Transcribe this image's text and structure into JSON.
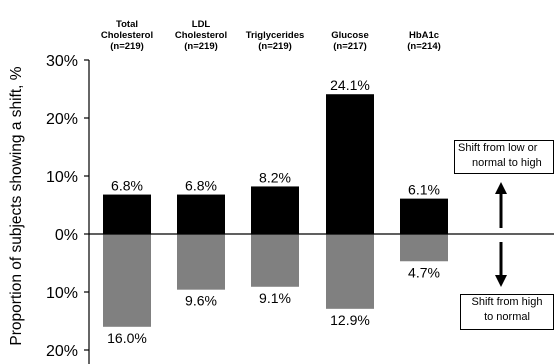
{
  "chart_data": {
    "type": "bar",
    "ylabel": "Proportion of subjects showing a shift, %",
    "categories": [
      {
        "name": "Total Cholesterol",
        "lines": [
          "Total",
          "Cholesterol",
          "(n=219)"
        ]
      },
      {
        "name": "LDL Cholesterol",
        "lines": [
          "LDL",
          "Cholesterol",
          "(n=219)"
        ]
      },
      {
        "name": "Triglycerides",
        "lines": [
          "Triglycerides",
          "(n=219)"
        ]
      },
      {
        "name": "Glucose",
        "lines": [
          "Glucose",
          "(n=217)"
        ]
      },
      {
        "name": "HbA1c",
        "lines": [
          "HbA1c",
          "(n=214)"
        ]
      }
    ],
    "series": [
      {
        "values": [
          6.8,
          6.8,
          8.2,
          24.1,
          6.1
        ],
        "labels": [
          "6.8%",
          "6.8%",
          "8.2%",
          "24.1%",
          "6.1%"
        ],
        "color": "#000000",
        "direction": "up"
      },
      {
        "values": [
          16.0,
          9.6,
          9.1,
          12.9,
          4.7
        ],
        "labels": [
          "16.0%",
          "9.6%",
          "9.1%",
          "12.9%",
          "4.7%"
        ],
        "color": "#808080",
        "direction": "down"
      }
    ],
    "yticks": [
      {
        "value": 30,
        "label": "30%"
      },
      {
        "value": 20,
        "label": "20%"
      },
      {
        "value": 10,
        "label": "10%"
      },
      {
        "value": 0,
        "label": "0%"
      },
      {
        "value": -10,
        "label": "10%"
      },
      {
        "value": -20,
        "label": "20%"
      }
    ],
    "ylim": [
      -20,
      30
    ],
    "grid": false,
    "annotations": {
      "up": [
        "Shift from low or",
        "normal to high"
      ],
      "down": [
        "Shift from high",
        "to normal"
      ]
    }
  }
}
